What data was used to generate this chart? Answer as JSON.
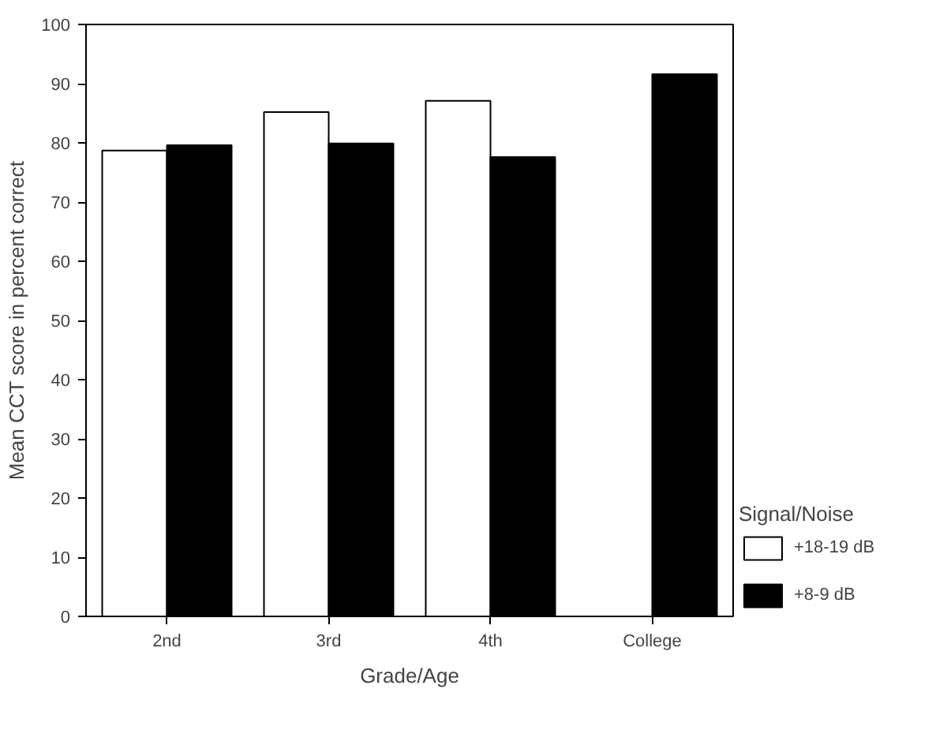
{
  "chart_data": {
    "type": "bar",
    "xlabel": "Grade/Age",
    "ylabel": "Mean CCT score in percent correct",
    "legend_title": "Signal/Noise",
    "categories": [
      "2nd",
      "3rd",
      "4th",
      "College"
    ],
    "series": [
      {
        "name": "+18-19 dB",
        "color": "#ffffff",
        "values": [
          78.7,
          85.2,
          87.1,
          null
        ]
      },
      {
        "name": "+8-9 dB",
        "color": "#000000",
        "values": [
          79.6,
          79.9,
          77.6,
          91.6
        ]
      }
    ],
    "ylim": [
      0,
      100
    ],
    "yticks": [
      0,
      10,
      20,
      30,
      40,
      50,
      60,
      70,
      80,
      90,
      100
    ],
    "legend": "right"
  }
}
